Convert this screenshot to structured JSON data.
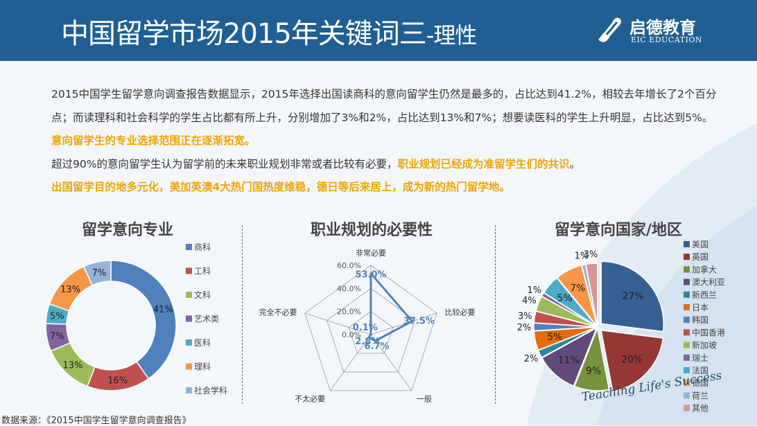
{
  "header": {
    "title_main": "中国留学市场2015年关键词三",
    "title_sub": "-理性",
    "logo_cn": "启德教育",
    "logo_en": "EIC EDUCATION"
  },
  "paragraphs": [
    [
      {
        "text": "2015中国学生留学意向调查报告数据显示，2015年选择出国读商科的意向留学生仍然是最多的，占比达到41.2%，相较去年增长了2个百分点；而读理科和社会科学的学生占比都有所上升，分别增加了3%和2%，占比达到13%和7%；想要读医科的学生上升明显，占比达到5%。",
        "highlight": false
      },
      {
        "text": "意向留学生的专业选择范围正在逐渐拓宽。",
        "highlight": true
      }
    ],
    [
      {
        "text": "超过90%的意向留学生认为留学前的未来职业规划非常或者比较有必要，",
        "highlight": false
      },
      {
        "text": "职业规划已经成为准留学生们的共识",
        "highlight": true
      },
      {
        "text": "。",
        "highlight": false
      }
    ],
    [
      {
        "text": "出国留学目的地多元化，美加英澳4大热门国热度维稳，德日等后来居上，成为新的热门留学地。",
        "highlight": true
      }
    ]
  ],
  "source": "数据来源：《2015中国学生留学意向调查报告》",
  "tagline": "Teaching Life's Success",
  "chart_data": [
    {
      "type": "pie",
      "style": "donut",
      "title": "留学意向专业",
      "categories": [
        "商科",
        "工科",
        "文科",
        "艺术类",
        "医科",
        "理科",
        "社会学科"
      ],
      "values": [
        41,
        16,
        13,
        7,
        5,
        13,
        7
      ],
      "data_labels": [
        "41%",
        "16%",
        "13%",
        "7%",
        "5%",
        "13%",
        "7%"
      ],
      "colors": [
        "#4f81bd",
        "#c0504d",
        "#9bbb59",
        "#8064a2",
        "#4bacc6",
        "#f79646",
        "#95b3d7"
      ],
      "legend": "right"
    },
    {
      "type": "radar",
      "title": "职业规划的必要性",
      "categories": [
        "非常必要",
        "比较必要",
        "一般",
        "不太必要",
        "完全不必要"
      ],
      "values": [
        53.0,
        37.5,
        6.7,
        2.8,
        0.1
      ],
      "data_labels": [
        "53.0%",
        "37.5%",
        "6.7%",
        "2.8%",
        "0.1%"
      ],
      "rlim": [
        0,
        60
      ],
      "ticks": [
        "0.0%",
        "20.0%",
        "40.0%",
        "60.0%"
      ],
      "tick_values": [
        0,
        20,
        40,
        60
      ],
      "color": "#4f81bd"
    },
    {
      "type": "pie",
      "style": "exploded",
      "title": "留学意向国家/地区",
      "categories": [
        "美国",
        "英国",
        "加拿大",
        "澳大利亚",
        "新西兰",
        "日本",
        "韩国",
        "中国香港",
        "新加坡",
        "瑞士",
        "法国",
        "德国",
        "荷兰",
        "其他"
      ],
      "values": [
        27,
        20,
        9,
        11,
        2,
        5,
        2,
        3,
        4,
        1,
        5,
        7,
        1,
        3
      ],
      "data_labels": [
        "27%",
        "20%",
        "9%",
        "11%",
        "2%",
        "5%",
        "2%",
        "3%",
        "4%",
        "1%",
        "5%",
        "7%",
        "1%",
        "3%"
      ],
      "colors": [
        "#376092",
        "#953735",
        "#77933c",
        "#604a7b",
        "#31859c",
        "#e46c0a",
        "#4f81bd",
        "#c0504d",
        "#9bbb59",
        "#8064a2",
        "#4bacc6",
        "#f79646",
        "#95b3d7",
        "#d99694"
      ],
      "legend": "right"
    }
  ]
}
